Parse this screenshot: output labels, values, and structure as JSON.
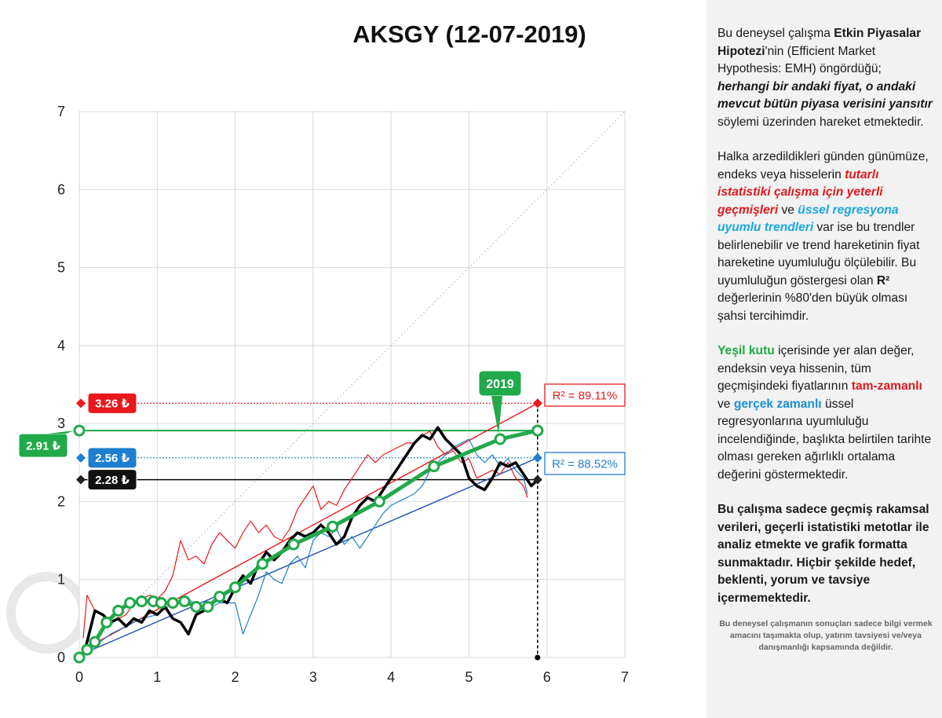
{
  "chart_data": {
    "type": "scatter",
    "title": "AKSGY (12-07-2019)",
    "xlim": [
      0,
      7
    ],
    "ylim": [
      0,
      7
    ],
    "x_ticks": [
      "0",
      "1",
      "2",
      "3",
      "4",
      "5",
      "6",
      "7"
    ],
    "y_ticks": [
      "0",
      "1",
      "2",
      "3",
      "4",
      "5",
      "6",
      "7"
    ],
    "grid": true,
    "price_labels": {
      "red": "3.26 ₺",
      "green": "2.91 ₺",
      "blue": "2.56 ₺",
      "black": "2.28 ₺"
    },
    "r2_labels": {
      "red": "R² = 89.11%",
      "blue": "R² = 88.52%"
    },
    "year_label": "2019",
    "current_x": 5.88,
    "levels": {
      "red": 3.26,
      "green": 2.91,
      "blue": 2.56,
      "black": 2.28
    },
    "trend_lines": [
      {
        "name": "",
        "color": "#e8191c",
        "x": [
          0.05,
          5.88
        ],
        "y": [
          0.1,
          3.26
        ]
      },
      {
        "name": "",
        "color": "#1f4fb5",
        "x": [
          0.05,
          5.88
        ],
        "y": [
          0.05,
          2.56
        ]
      }
    ],
    "series": [
      {
        "color": "#e8191c",
        "x": [
          0.05,
          0.1,
          0.2,
          0.3,
          0.4,
          0.5,
          0.6,
          0.7,
          0.8,
          0.9,
          1.0,
          1.1,
          1.2,
          1.3,
          1.4,
          1.5,
          1.6,
          1.7,
          1.8,
          1.9,
          2.0,
          2.1,
          2.2,
          2.3,
          2.4,
          2.5,
          2.6,
          2.7,
          2.8,
          2.9,
          3.0,
          3.1,
          3.2,
          3.3,
          3.4,
          3.5,
          3.6,
          3.7,
          3.8,
          3.9,
          4.0,
          4.1,
          4.2,
          4.3,
          4.4,
          4.5,
          4.6,
          4.7,
          4.8,
          4.9,
          5.0,
          5.1,
          5.2,
          5.3,
          5.4,
          5.5,
          5.6,
          5.7,
          5.75
        ],
        "y": [
          0.25,
          0.8,
          0.6,
          0.55,
          0.45,
          0.5,
          0.55,
          0.7,
          0.75,
          0.8,
          0.75,
          0.85,
          1.05,
          1.5,
          1.25,
          1.3,
          1.2,
          1.45,
          1.6,
          1.5,
          1.4,
          1.6,
          1.75,
          1.6,
          1.7,
          1.55,
          1.5,
          1.65,
          1.9,
          2.05,
          2.2,
          1.9,
          2.0,
          1.95,
          2.15,
          2.3,
          2.45,
          2.6,
          2.5,
          2.6,
          2.65,
          2.7,
          2.75,
          2.75,
          2.85,
          2.9,
          2.7,
          2.6,
          2.65,
          2.5,
          2.55,
          2.3,
          2.35,
          2.4,
          2.35,
          2.5,
          2.3,
          2.2,
          2.05
        ]
      },
      {
        "color": "#1e7fd0",
        "x": [
          0.05,
          0.2,
          0.4,
          0.6,
          0.8,
          1.0,
          1.2,
          1.4,
          1.6,
          1.8,
          2.0,
          2.1,
          2.2,
          2.3,
          2.4,
          2.5,
          2.6,
          2.7,
          2.8,
          2.9,
          3.0,
          3.1,
          3.2,
          3.3,
          3.4,
          3.5,
          3.6,
          3.7,
          3.8,
          3.9,
          4.0,
          4.1,
          4.2,
          4.3,
          4.4,
          4.5,
          4.6,
          4.7,
          4.8,
          4.9,
          5.0,
          5.1,
          5.2,
          5.3,
          5.4,
          5.5,
          5.6,
          5.7,
          5.75
        ],
        "y": [
          0.05,
          0.15,
          0.3,
          0.4,
          0.5,
          0.55,
          0.7,
          0.75,
          0.6,
          0.7,
          0.7,
          0.3,
          0.55,
          0.8,
          1.1,
          1.0,
          0.95,
          1.2,
          1.3,
          1.15,
          1.5,
          1.6,
          1.55,
          1.65,
          1.45,
          1.55,
          1.4,
          1.55,
          1.7,
          1.85,
          1.95,
          2.0,
          2.05,
          2.1,
          2.2,
          2.4,
          2.5,
          2.6,
          2.7,
          2.75,
          2.8,
          2.6,
          2.5,
          2.6,
          2.45,
          2.55,
          2.4,
          2.3,
          2.1
        ]
      },
      {
        "color": "#000000",
        "x": [
          0.05,
          0.1,
          0.2,
          0.3,
          0.4,
          0.5,
          0.6,
          0.7,
          0.8,
          0.9,
          1.0,
          1.1,
          1.2,
          1.3,
          1.4,
          1.5,
          1.6,
          1.7,
          1.8,
          1.9,
          2.0,
          2.1,
          2.2,
          2.3,
          2.4,
          2.5,
          2.6,
          2.7,
          2.8,
          2.9,
          3.0,
          3.1,
          3.2,
          3.3,
          3.4,
          3.5,
          3.6,
          3.7,
          3.8,
          3.9,
          4.0,
          4.1,
          4.2,
          4.3,
          4.4,
          4.5,
          4.6,
          4.7,
          4.8,
          4.9,
          5.0,
          5.1,
          5.2,
          5.3,
          5.4,
          5.5,
          5.6,
          5.7,
          5.8,
          5.88
        ],
        "y": [
          0.05,
          0.2,
          0.6,
          0.55,
          0.45,
          0.5,
          0.4,
          0.5,
          0.45,
          0.6,
          0.55,
          0.65,
          0.5,
          0.45,
          0.3,
          0.55,
          0.6,
          0.7,
          0.75,
          0.7,
          0.9,
          1.05,
          0.95,
          1.2,
          1.35,
          1.25,
          1.35,
          1.5,
          1.6,
          1.55,
          1.6,
          1.7,
          1.6,
          1.45,
          1.55,
          1.8,
          1.95,
          2.05,
          2.0,
          2.15,
          2.3,
          2.45,
          2.6,
          2.75,
          2.85,
          2.8,
          2.95,
          2.8,
          2.7,
          2.6,
          2.3,
          2.2,
          2.15,
          2.3,
          2.5,
          2.45,
          2.5,
          2.35,
          2.2,
          2.28
        ]
      },
      {
        "color": "#21a94a",
        "x": [
          0.0,
          0.1,
          0.2,
          0.35,
          0.5,
          0.65,
          0.8,
          0.95,
          1.05,
          1.2,
          1.35,
          1.5,
          1.65,
          1.8,
          2.0,
          2.35,
          2.75,
          3.25,
          3.85,
          4.55,
          5.4,
          5.88
        ],
        "y": [
          0.0,
          0.1,
          0.2,
          0.45,
          0.6,
          0.7,
          0.72,
          0.72,
          0.7,
          0.7,
          0.72,
          0.65,
          0.65,
          0.78,
          0.9,
          1.2,
          1.45,
          1.68,
          2.0,
          2.45,
          2.8,
          2.91
        ]
      }
    ]
  },
  "side": {
    "p1a": "Bu deneysel çalışma ",
    "p1b": "Etkin Piyasalar Hipotezi",
    "p1c": "'nin (Efficient Market Hypothesis: EMH) öngördüğü; ",
    "p1d": "herhangi bir andaki fiyat, o andaki mevcut bütün piyasa verisini yansıtır",
    "p1e": "  söylemi üzerinden hareket etmektedir.",
    "p2a": "Halka arzedildikleri günden günümüze, endeks veya hisselerin ",
    "p2b": "tutarlı istatistiki çalışma için yeterli geçmişleri",
    "p2c": " ve ",
    "p2d": "üssel regresyona uyumlu trendleri",
    "p2e": " var ise bu trendler belirlenebilir ve trend hareketinin fiyat hareketine uyumluluğu ölçülebilir. Bu uyumluluğun göstergesi olan ",
    "p2f": "R²",
    "p2g": " değerlerinin %80'den büyük olması şahsi tercihimdir.",
    "p3a": "Yeşil kutu",
    "p3b": " içerisinde yer alan değer, endeksin veya hissenin, tüm geçmişindeki fiyatlarının ",
    "p3c": "tam-zamanlı",
    "p3d": " ve ",
    "p3e": "gerçek zamanlı",
    "p3f": " üssel regresyonlarına uyumluluğu incelendiğinde, başlıkta belirtilen tarihte olması gereken ağırlıklı ortalama değerini göstermektedir.",
    "p4": "Bu çalışma sadece geçmiş rakamsal verileri, geçerli istatistiki metotlar ile  analiz etmekte ve grafik formatta sunmaktadır. Hiçbir şekilde hedef, beklenti, yorum ve tavsiye içermemektedir.",
    "disclaimer": "Bu deneysel çalışmanın sonuçları sadece bilgi vermek amacını taşımakta olup, yatırım tavsiyesi ve/veya danışmanlığı kapsamında değildir."
  }
}
